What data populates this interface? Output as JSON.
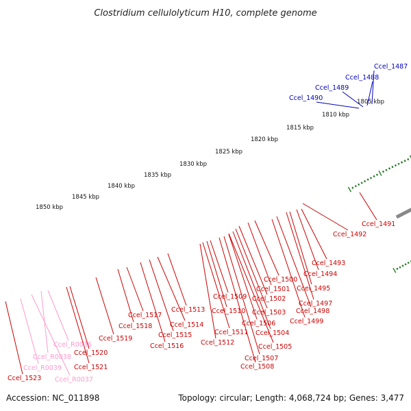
{
  "title": "Clostridium cellulolyticum H10, complete genome",
  "footer": {
    "accession": "Accession: NC_011898",
    "topology": "Topology: circular; Length: 4,068,724 bp; Genes: 3,477"
  },
  "colors": {
    "cds": "#ee0000",
    "rna_pink": "#ff99cc",
    "blue": "#1a1aff",
    "cyan": "#00cccc",
    "olive": "#889922",
    "khaki": "#bbbb77",
    "grey": "#888888",
    "backbone": "#888888",
    "tick": "#227722",
    "red_label": "#cc0000",
    "blue_label": "#0000bb",
    "pink_label": "#ff99cc"
  },
  "kbp_labels": [
    "1850 kbp",
    "1845 kbp",
    "1840 kbp",
    "1835 kbp",
    "1830 kbp",
    "1825 kbp",
    "1820 kbp",
    "1815 kbp",
    "1810 kbp",
    "1805 kbp"
  ],
  "labels": {
    "blue": [
      "Ccel_1487",
      "Ccel_1488",
      "Ccel_1489",
      "Ccel_1490"
    ],
    "red": [
      "Ccel_1491",
      "Ccel_1492",
      "Ccel_1493",
      "Ccel_1494",
      "Ccel_1495",
      "Ccel_1497",
      "Ccel_1498",
      "Ccel_1499",
      "Ccel_1500",
      "Ccel_1501",
      "Ccel_1502",
      "Ccel_1503",
      "Ccel_1504",
      "Ccel_1505",
      "Ccel_1506",
      "Ccel_1507",
      "Ccel_1508",
      "Ccel_1509",
      "Ccel_1510",
      "Ccel_1511",
      "Ccel_1512",
      "Ccel_1513",
      "Ccel_1514",
      "Ccel_1515",
      "Ccel_1516",
      "Ccel_1517",
      "Ccel_1518",
      "Ccel_1519",
      "Ccel_1520",
      "Ccel_1521",
      "Ccel_1523"
    ],
    "pink": [
      "Ccel_R0036",
      "Ccel_R0038",
      "Ccel_R0039",
      "Ccel_R0037"
    ]
  }
}
